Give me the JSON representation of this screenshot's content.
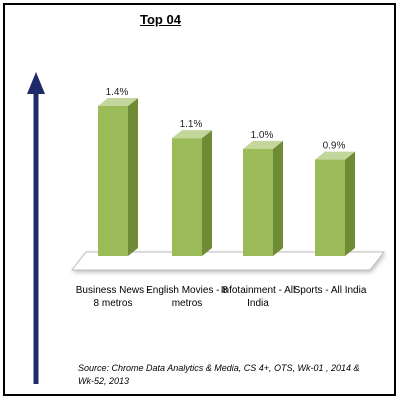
{
  "chart_data": {
    "type": "bar",
    "title": "Top 04",
    "categories": [
      "Business News - 8 metros",
      "English Movies - 8 metros",
      "Infotainment - All India",
      "Sports - All India"
    ],
    "values": [
      1.4,
      1.1,
      1.0,
      0.9
    ],
    "value_labels": [
      "1.4%",
      "1.1%",
      "1.0%",
      "0.9%"
    ],
    "ylim": [
      0,
      1.5
    ],
    "grid": false,
    "legend": "none",
    "bar_style": "3d"
  },
  "colors": {
    "bar_front": "#9bbb59",
    "bar_side": "#6f8b36",
    "bar_top": "#c3d69b",
    "arrow": "#1f2a6b",
    "floor": "#ffffff"
  },
  "source": "Source: Chrome Data Analytics & Media, CS 4+, OTS, Wk-01 , 2014 & Wk-52, 2013"
}
